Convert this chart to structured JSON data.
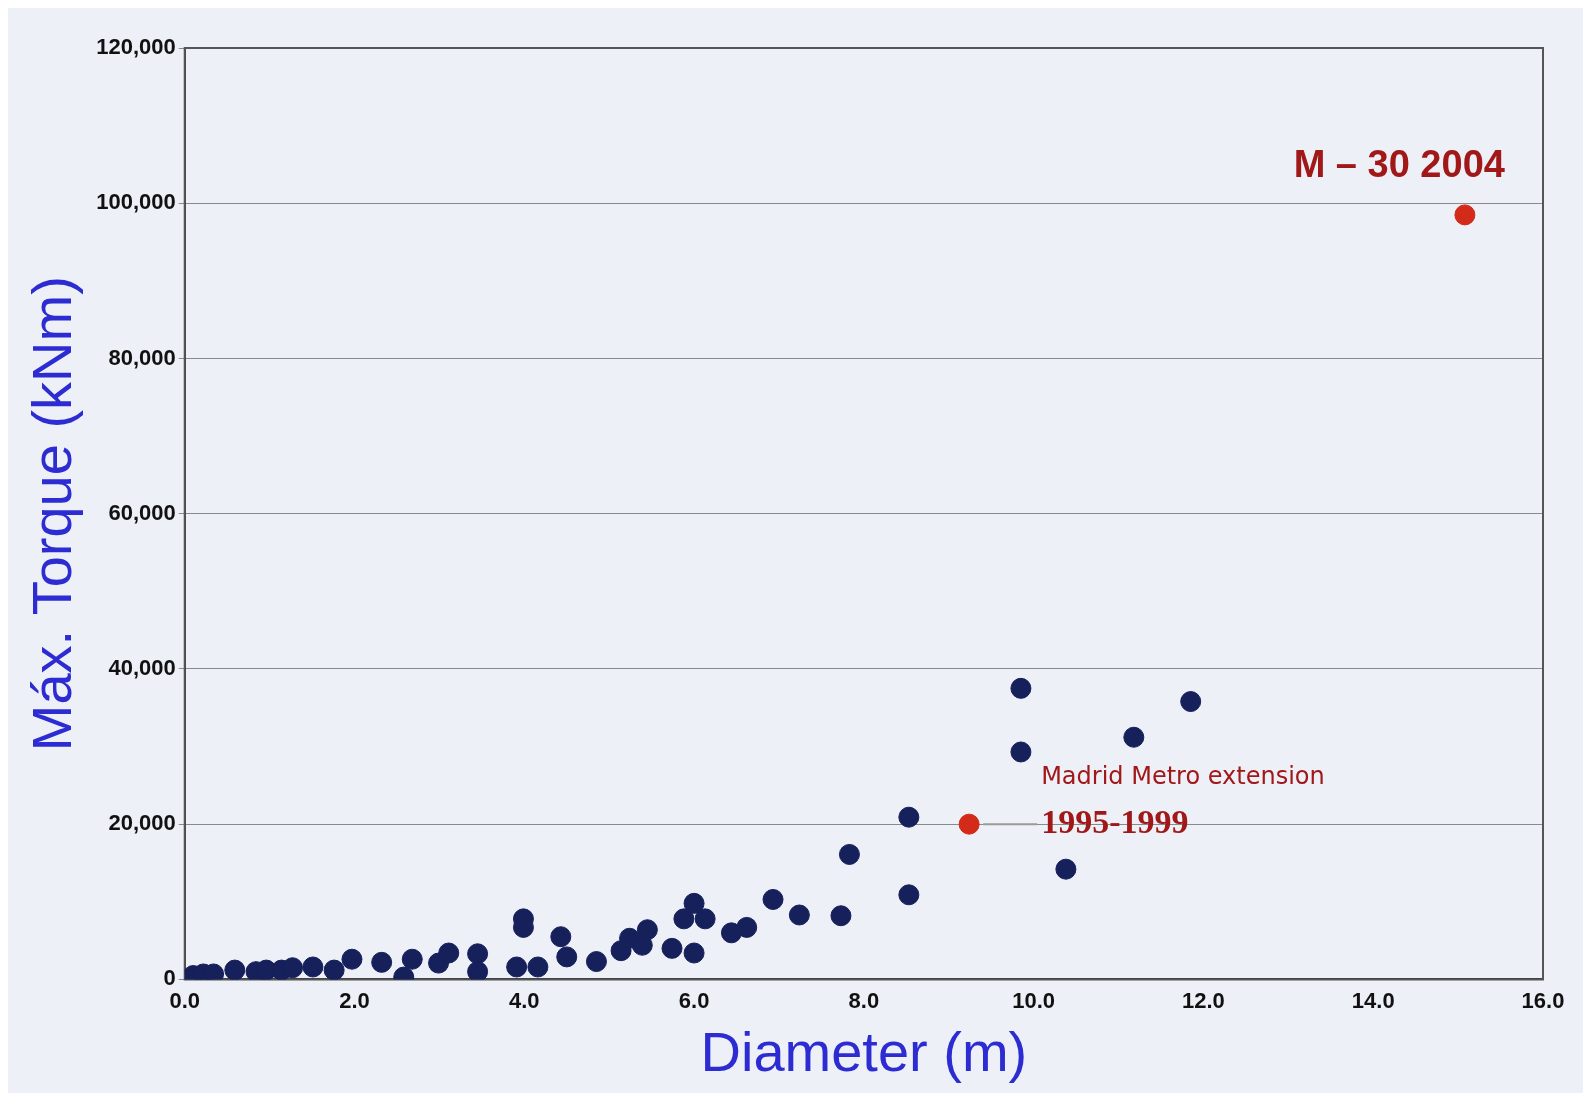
{
  "chart_data": {
    "type": "scatter",
    "xlabel": "Diameter (m)",
    "ylabel": "Máx. Torque (kNm)",
    "xlim": [
      0,
      16
    ],
    "xticks": [
      {
        "value": 0,
        "label": "0.0"
      },
      {
        "value": 2,
        "label": "2.0"
      },
      {
        "value": 4,
        "label": "4.0"
      },
      {
        "value": 6,
        "label": "6.0"
      },
      {
        "value": 8,
        "label": "8.0"
      },
      {
        "value": 10,
        "label": "10.0"
      },
      {
        "value": 12,
        "label": "12.0"
      },
      {
        "value": 14,
        "label": "14.0"
      },
      {
        "value": 16,
        "label": "16.0"
      }
    ],
    "ylim": [
      0,
      120000
    ],
    "yticks": [
      0,
      {
        "value": 20000,
        "label": "20,000"
      },
      {
        "value": 40000,
        "label": "40,000"
      },
      {
        "value": 60000,
        "label": "60,000"
      },
      {
        "value": 80000,
        "label": "80,000"
      },
      {
        "value": 100000,
        "label": "100,000"
      },
      {
        "value": 120000,
        "label": "120,000"
      }
    ],
    "grid": "y",
    "legend": false,
    "marker": "circle",
    "series": [
      {
        "color": "#16205a",
        "x": [
          0.1,
          0.22,
          0.34,
          0.59,
          0.84,
          0.96,
          1.14,
          1.27,
          1.51,
          1.76,
          1.94,
          1.97,
          2.32,
          2.58,
          2.68,
          2.99,
          3.11,
          3.45,
          3.45,
          3.91,
          3.99,
          3.99,
          4.16,
          4.43,
          4.5,
          4.85,
          5.14,
          5.24,
          5.39,
          5.45,
          5.74,
          5.88,
          6.0,
          6.0,
          6.03,
          6.13,
          6.44,
          6.62,
          6.93,
          7.24,
          7.73,
          7.83,
          8.53,
          8.53,
          9.85,
          9.85,
          10.38,
          11.18,
          11.85
        ],
        "values": [
          500,
          700,
          700,
          1200,
          1000,
          1200,
          1200,
          1500,
          1600,
          1200,
          null,
          2600,
          2200,
          300,
          2600,
          2100,
          3400,
          3300,
          1000,
          1600,
          7800,
          6700,
          1600,
          5500,
          2900,
          2300,
          3700,
          5300,
          4400,
          6400,
          4000,
          7800,
          9800,
          3400,
          null,
          7800,
          6000,
          6700,
          10300,
          8300,
          8200,
          16100,
          20900,
          10900,
          37500,
          29300,
          14200,
          31200,
          35800
        ]
      },
      {
        "color": "#d42a1a",
        "x": [
          9.24,
          15.08
        ],
        "values": [
          20000,
          98500
        ]
      }
    ],
    "annotations": [
      {
        "text": "Madrid Metro extension\n1995-1999",
        "x": 9.24,
        "y": 20000
      },
      {
        "text": "M – 30 2004",
        "x": 15.08,
        "y": 98500
      }
    ]
  }
}
